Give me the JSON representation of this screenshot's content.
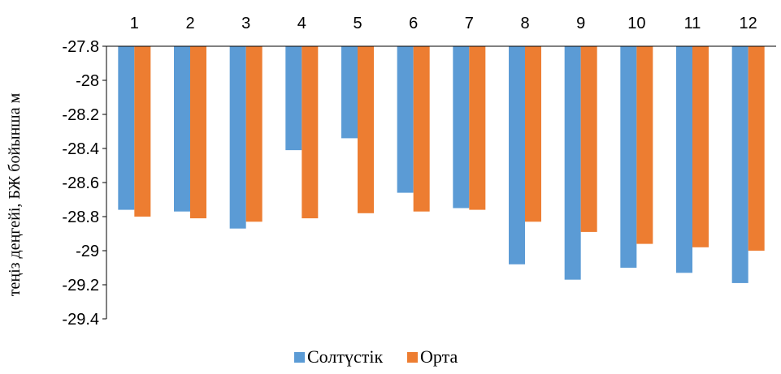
{
  "chart_data": {
    "type": "bar",
    "title": "",
    "xlabel": "",
    "ylabel": "теңіз деңгейі, БЖ бойынша м",
    "ylim": [
      -29.4,
      -27.8
    ],
    "yticks": [
      -27.8,
      -28,
      -28.2,
      -28.4,
      -28.6,
      -28.8,
      -29,
      -29.2,
      -29.4
    ],
    "ytick_labels": [
      "-27.8",
      "-28",
      "-28.2",
      "-28.4",
      "-28.6",
      "-28.8",
      "-29",
      "-29.2",
      "-29.4"
    ],
    "x_axis_position": "top",
    "grid": false,
    "legend_position": "bottom",
    "categories": [
      "1",
      "2",
      "3",
      "4",
      "5",
      "6",
      "7",
      "8",
      "9",
      "10",
      "11",
      "12"
    ],
    "series": [
      {
        "name": "Солтүстік",
        "color": "#5B9BD5",
        "values": [
          -28.76,
          -28.77,
          -28.87,
          -28.41,
          -28.34,
          -28.66,
          -28.75,
          -29.08,
          -29.17,
          -29.1,
          -29.13,
          -29.19
        ]
      },
      {
        "name": "Орта",
        "color": "#ED7D31",
        "values": [
          -28.8,
          -28.81,
          -28.83,
          -28.81,
          -28.78,
          -28.77,
          -28.76,
          -28.83,
          -28.89,
          -28.96,
          -28.98,
          -29.0
        ]
      }
    ]
  }
}
